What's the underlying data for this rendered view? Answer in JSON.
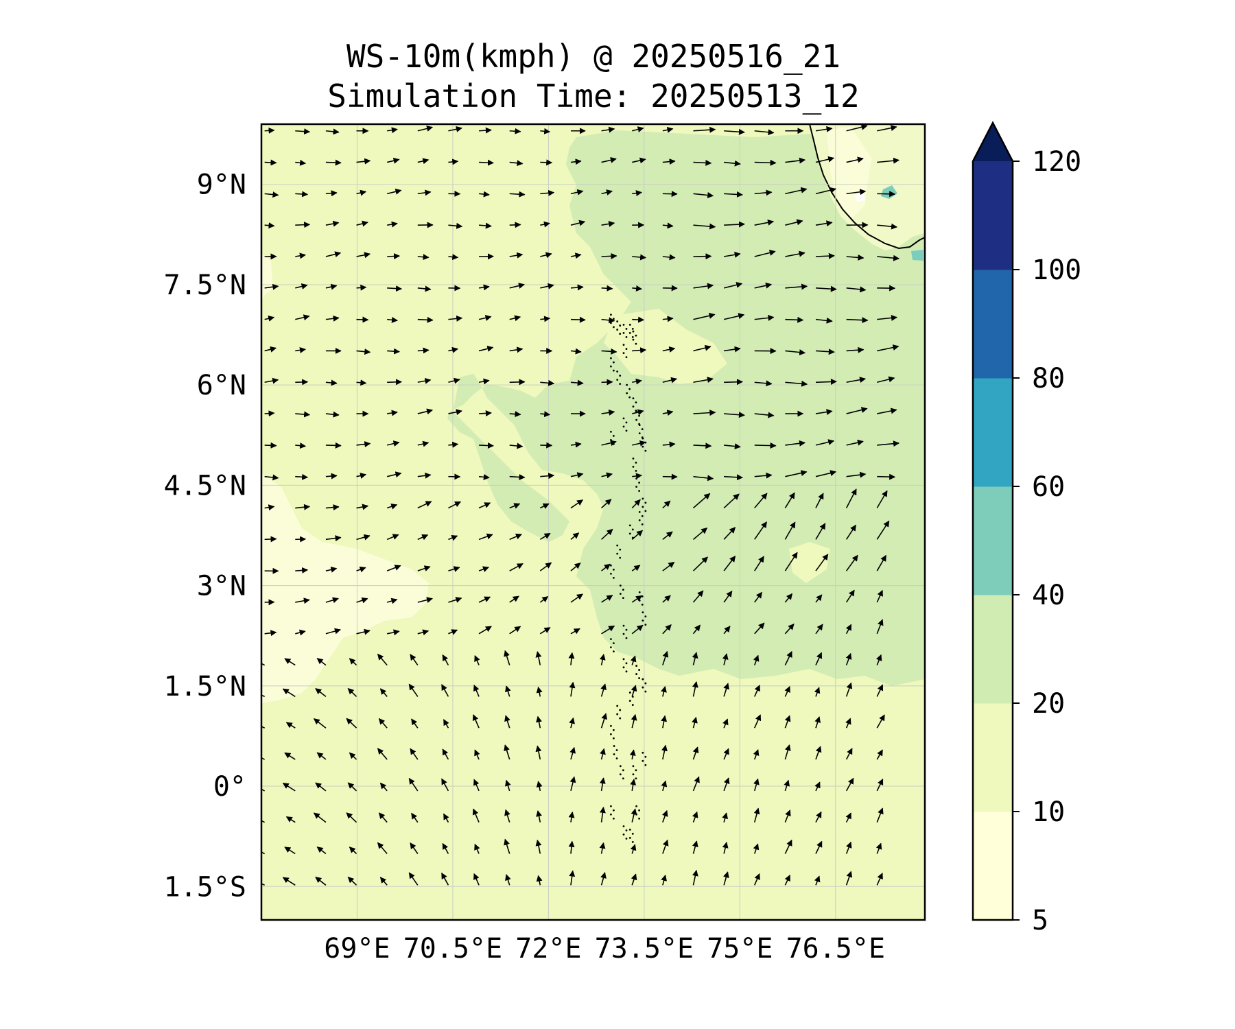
{
  "title": {
    "line1": "WS-10m(kmph) @ 20250516_21",
    "line2": "Simulation Time: 20250513_12"
  },
  "map": {
    "lon_range": [
      67.5,
      77.9
    ],
    "lat_range": [
      -2.0,
      9.9
    ],
    "lon_ticks": [
      {
        "value": 69.0,
        "label": "69°E"
      },
      {
        "value": 70.5,
        "label": "70.5°E"
      },
      {
        "value": 72.0,
        "label": "72°E"
      },
      {
        "value": 73.5,
        "label": "73.5°E"
      },
      {
        "value": 75.0,
        "label": "75°E"
      },
      {
        "value": 76.5,
        "label": "76.5°E"
      }
    ],
    "lat_ticks": [
      {
        "value": 9.0,
        "label": "9°N"
      },
      {
        "value": 7.5,
        "label": "7.5°N"
      },
      {
        "value": 6.0,
        "label": "6°N"
      },
      {
        "value": 4.5,
        "label": "4.5°N"
      },
      {
        "value": 3.0,
        "label": "3°N"
      },
      {
        "value": 1.5,
        "label": "1.5°N"
      },
      {
        "value": 0.0,
        "label": "0°"
      },
      {
        "value": -1.5,
        "label": "1.5°S"
      }
    ],
    "gridlines": true,
    "background_color": "#eff8bd",
    "region_colors": {
      "calm": "#fbfdd8",
      "light": "#eff8bd",
      "moderate": "#d2ecb4",
      "strong": "#7ccdbb"
    }
  },
  "colorbar": {
    "levels": [
      5,
      10,
      20,
      40,
      60,
      80,
      100,
      120
    ],
    "colors": [
      "#ffffd9",
      "#eff8bd",
      "#d1ecb3",
      "#7ecdbb",
      "#31a5c2",
      "#2165ab",
      "#1e2f83"
    ],
    "extend_color": "#091d58",
    "extend": "max"
  }
}
